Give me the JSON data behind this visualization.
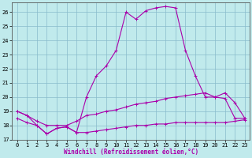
{
  "xlabel": "Windchill (Refroidissement éolien,°C)",
  "bg_color": "#c0eaec",
  "line_color": "#aa00aa",
  "grid_color": "#88bbcc",
  "xlim": [
    -0.5,
    23.5
  ],
  "ylim": [
    17,
    26.7
  ],
  "yticks": [
    17,
    18,
    19,
    20,
    21,
    22,
    23,
    24,
    25,
    26
  ],
  "xticks": [
    0,
    1,
    2,
    3,
    4,
    5,
    6,
    7,
    8,
    9,
    10,
    11,
    12,
    13,
    14,
    15,
    16,
    17,
    18,
    19,
    20,
    21,
    22,
    23
  ],
  "line1_x": [
    0,
    1,
    2,
    3,
    4,
    5,
    6,
    7,
    8,
    9,
    10,
    11,
    12,
    13,
    14,
    15,
    16,
    17,
    18,
    19,
    20,
    21,
    22,
    23
  ],
  "line1_y": [
    19.0,
    18.7,
    18.0,
    17.4,
    17.8,
    17.9,
    17.5,
    20.0,
    21.5,
    22.2,
    23.3,
    26.0,
    25.5,
    26.1,
    26.3,
    26.4,
    26.3,
    23.3,
    21.5,
    20.0,
    20.0,
    20.3,
    19.6,
    18.5
  ],
  "line2_x": [
    0,
    1,
    2,
    3,
    4,
    5,
    6,
    7,
    8,
    9,
    10,
    11,
    12,
    13,
    14,
    15,
    16,
    17,
    18,
    19,
    20,
    21,
    22,
    23
  ],
  "line2_y": [
    19.0,
    18.7,
    18.3,
    18.0,
    18.0,
    18.0,
    18.3,
    18.7,
    18.8,
    19.0,
    19.1,
    19.3,
    19.5,
    19.6,
    19.7,
    19.9,
    20.0,
    20.1,
    20.2,
    20.3,
    20.0,
    19.9,
    18.5,
    18.5
  ],
  "line3_x": [
    0,
    1,
    2,
    3,
    4,
    5,
    6,
    7,
    8,
    9,
    10,
    11,
    12,
    13,
    14,
    15,
    16,
    17,
    18,
    19,
    20,
    21,
    22,
    23
  ],
  "line3_y": [
    18.5,
    18.2,
    18.0,
    17.4,
    17.8,
    17.9,
    17.5,
    17.5,
    17.6,
    17.7,
    17.8,
    17.9,
    18.0,
    18.0,
    18.1,
    18.1,
    18.2,
    18.2,
    18.2,
    18.2,
    18.2,
    18.2,
    18.3,
    18.4
  ],
  "marker": "+",
  "markersize": 3,
  "linewidth": 0.8,
  "tick_fontsize": 5,
  "label_fontsize": 5.5
}
